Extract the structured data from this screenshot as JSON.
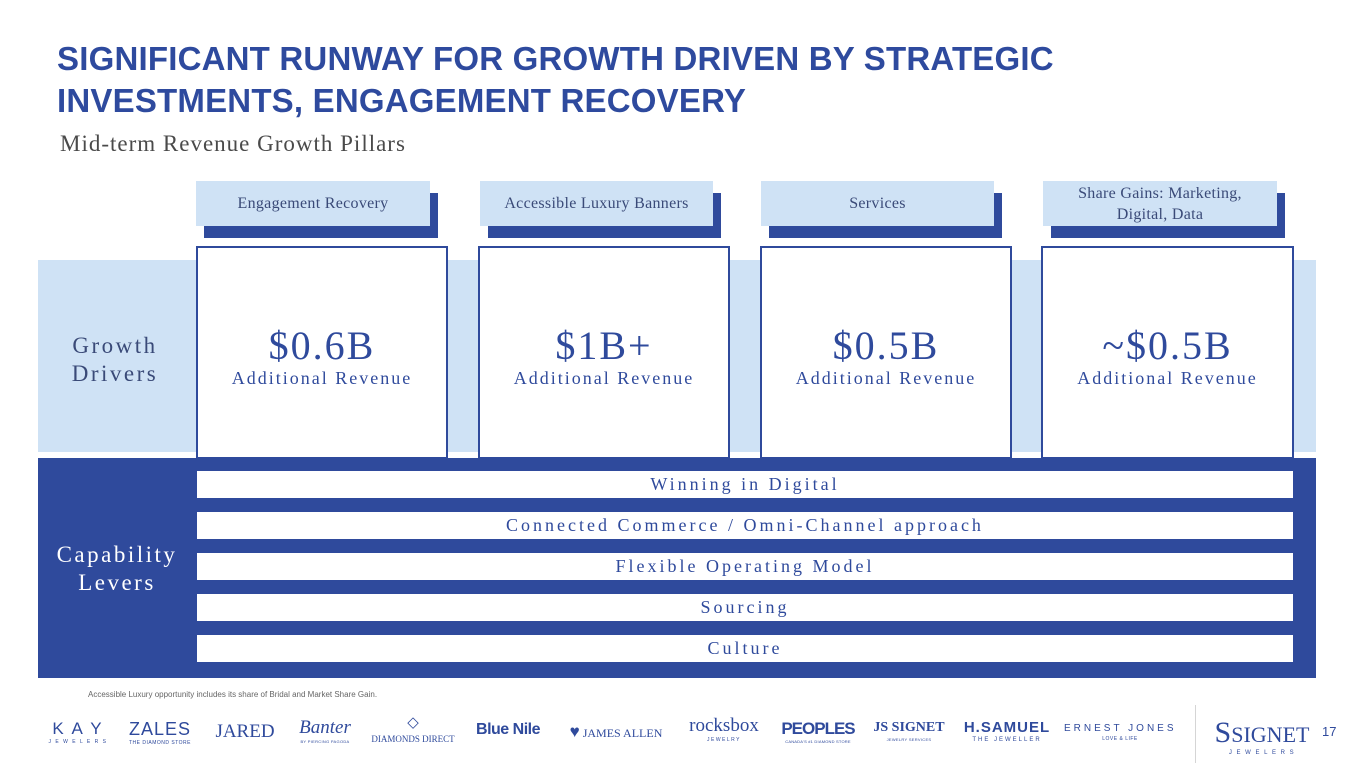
{
  "title": "SIGNIFICANT RUNWAY FOR GROWTH DRIVEN BY STRATEGIC INVESTMENTS, ENGAGEMENT RECOVERY",
  "subtitle": "Mid-term Revenue Growth Pillars",
  "row_labels": {
    "growth_drivers": "Growth Drivers",
    "capability_levers": "Capability Levers"
  },
  "pillars": [
    {
      "header": "Engagement Recovery",
      "amount": "$0.6B",
      "caption": "Additional Revenue"
    },
    {
      "header": "Accessible Luxury Banners",
      "amount": "$1B+",
      "caption": "Additional Revenue"
    },
    {
      "header": "Services",
      "amount": "$0.5B",
      "caption": "Additional Revenue"
    },
    {
      "header": "Share Gains: Marketing, Digital, Data",
      "amount": "~$0.5B",
      "caption": "Additional Revenue"
    }
  ],
  "levers": [
    "Winning in Digital",
    "Connected Commerce / Omni-Channel approach",
    "Flexible Operating Model",
    "Sourcing",
    "Culture"
  ],
  "footnote": "Accessible Luxury opportunity includes its share of Bridal and Market Share Gain.",
  "logos": [
    {
      "name": "K A Y",
      "tagline": "J E W E L E R S"
    },
    {
      "name": "ZALES",
      "tagline": "THE DIAMOND STORE"
    },
    {
      "name": "JARED",
      "tagline": ""
    },
    {
      "name": "Banter",
      "tagline": "BY PIERCING PAGODA"
    },
    {
      "name": "DIAMONDS DIRECT",
      "tagline": ""
    },
    {
      "name": "Blue Nile",
      "tagline": ""
    },
    {
      "name": "JAMES ALLEN",
      "tagline": ""
    },
    {
      "name": "rocksbox",
      "tagline": "JEWELRY"
    },
    {
      "name": "PEOPLES",
      "tagline": "CANADA'S #1 DIAMOND STORE"
    },
    {
      "name": "JS SIGNET",
      "tagline": "JEWELRY SERVICES"
    },
    {
      "name": "H.SAMUEL",
      "tagline": "THE JEWELLER"
    },
    {
      "name": "ERNEST JONES",
      "tagline": "LOVE & LIFE"
    },
    {
      "name": "SIGNET",
      "tagline": "J E W E L E R S"
    }
  ],
  "page_number": "17",
  "colors": {
    "primary": "#2f4a9c",
    "light": "#cfe2f5",
    "title": "#2e4a9e"
  }
}
